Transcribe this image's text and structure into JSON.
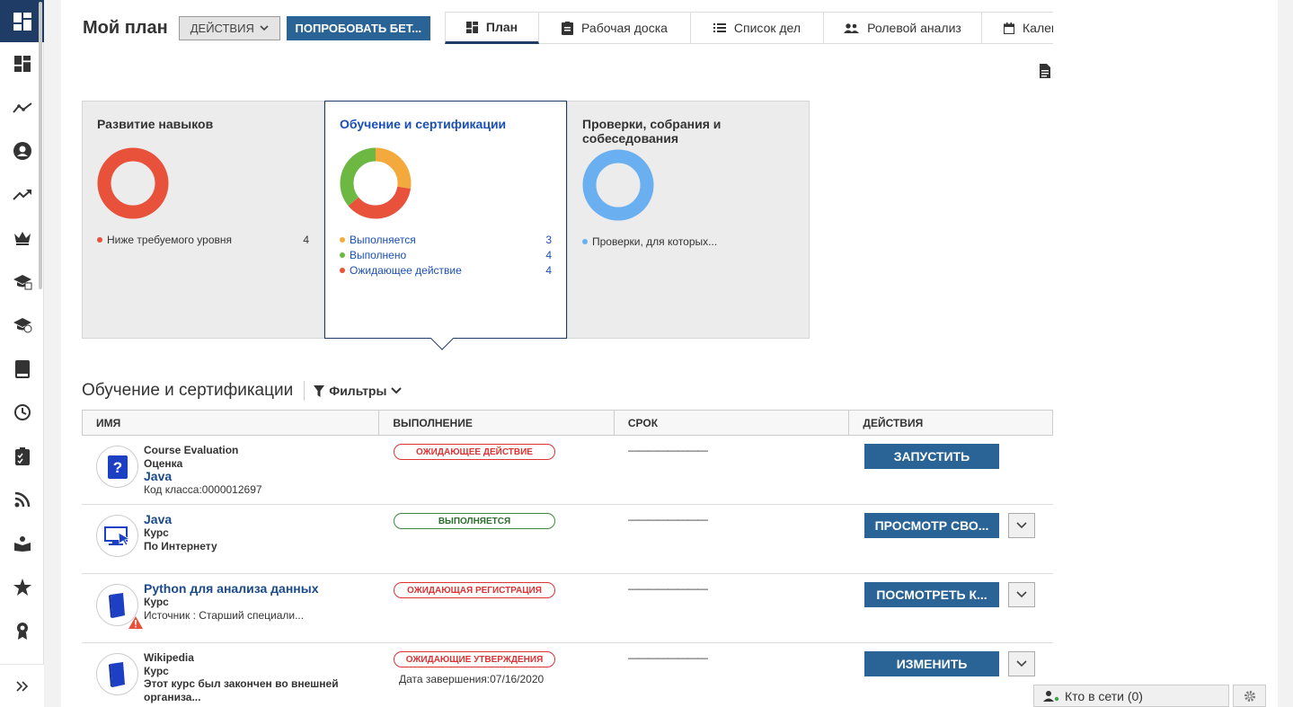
{
  "header": {
    "title": "Мой план",
    "actions_label": "ДЕЙСТВИЯ",
    "beta_label": "ПОПРОБОВАТЬ БЕТ..."
  },
  "tabs": [
    {
      "label": "План",
      "icon": "dashboard-icon",
      "active": true
    },
    {
      "label": "Рабочая доска",
      "icon": "clipboard-icon",
      "active": false
    },
    {
      "label": "Список дел",
      "icon": "list-icon",
      "active": false
    },
    {
      "label": "Ролевой анализ",
      "icon": "people-icon",
      "active": false
    },
    {
      "label": "Кален",
      "icon": "calendar-icon",
      "active": false
    }
  ],
  "cards": [
    {
      "title": "Развитие навыков",
      "segments": [
        {
          "label": "Ниже требуемого уровня",
          "count": "4",
          "color": "#e8513a"
        }
      ]
    },
    {
      "title": "Обучение и сертификации",
      "selected": true,
      "segments": [
        {
          "label": "Выполняется",
          "count": "3",
          "color": "#f3a93b"
        },
        {
          "label": "Выполнено",
          "count": "4",
          "color": "#6cb843"
        },
        {
          "label": "Ожидающее действие",
          "count": "4",
          "color": "#e8513a"
        }
      ]
    },
    {
      "title": "Проверки, собрания и собеседования",
      "segments": [
        {
          "label": "Проверки, для которых...",
          "count": "",
          "color": "#6aaff0"
        }
      ]
    }
  ],
  "section": {
    "title": "Обучение и сертификации",
    "filters_label": "Фильтры"
  },
  "table": {
    "columns": [
      "ИМЯ",
      "ВЫПОЛНЕНИЕ",
      "СРОК",
      "ДЕЙСТВИЯ"
    ],
    "rows": [
      {
        "icon": "question-icon",
        "lines": [
          "Course Evaluation",
          "Оценка"
        ],
        "link": "Java",
        "extra": "Код класса:0000012697",
        "status": "ОЖИДАЮЩЕЕ ДЕЙСТВИЕ",
        "status_color": "red",
        "status_note": "",
        "due": "————————",
        "action": "ЗАПУСТИТЬ",
        "has_more": false
      },
      {
        "icon": "online-course-icon",
        "link": "Java",
        "lines": [
          "Курс",
          "По Интернету"
        ],
        "status": "ВЫПОЛНЯЕТСЯ",
        "status_color": "green",
        "status_note": "",
        "due": "————————",
        "action": "ПРОСМОТР СВО...",
        "has_more": true
      },
      {
        "icon": "book-icon",
        "warning": true,
        "link": "Python для анализа данных",
        "lines": [
          "Курс",
          "Источник : Старший специали..."
        ],
        "status": "ОЖИДАЮЩАЯ РЕГИСТРАЦИЯ",
        "status_color": "red",
        "status_note": "",
        "due": "————————",
        "action": "ПОСМОТРЕТЬ К...",
        "has_more": true
      },
      {
        "icon": "book-icon",
        "lines": [
          "Wikipedia",
          "Курс",
          "Этот курс был закончен во внешней организа..."
        ],
        "status": "ОЖИДАЮЩИЕ УТВЕРЖДЕНИЯ",
        "status_color": "red",
        "status_note": "Дата завершения:07/16/2020",
        "due": "————————",
        "action": "ИЗМЕНИТЬ",
        "has_more": true
      }
    ]
  },
  "footer": {
    "online_label": "Кто в сети (0)"
  }
}
